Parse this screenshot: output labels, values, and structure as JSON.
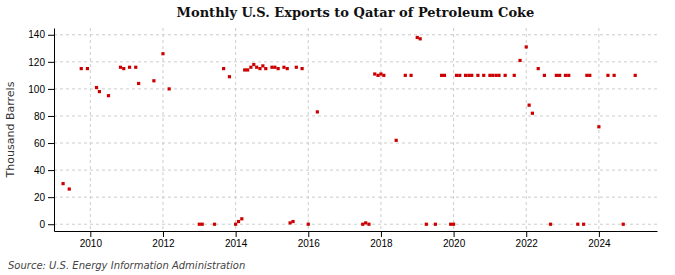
{
  "chart_data": {
    "type": "scatter",
    "title": "Monthly U.S. Exports to Qatar of Petroleum Coke",
    "ylabel": "Thousand Barrels",
    "annotations": [
      "Source: U.S. Energy Information Administration"
    ],
    "color": "#cc0000",
    "marker": "square",
    "grid": true,
    "xlim": [
      2009.0,
      2025.6
    ],
    "ylim": [
      -5,
      145
    ],
    "xticks": [
      2010,
      2012,
      2014,
      2016,
      2018,
      2020,
      2022,
      2024
    ],
    "yticks": [
      0,
      20,
      40,
      60,
      80,
      100,
      120,
      140
    ],
    "x": [
      2009.25,
      2009.42,
      2009.75,
      2009.92,
      2010.17,
      2010.25,
      2010.5,
      2010.83,
      2010.92,
      2011.08,
      2011.25,
      2011.33,
      2011.75,
      2012.0,
      2012.17,
      2013.0,
      2013.08,
      2013.42,
      2013.67,
      2013.83,
      2014.0,
      2014.08,
      2014.17,
      2014.25,
      2014.33,
      2014.42,
      2014.5,
      2014.58,
      2014.67,
      2014.75,
      2014.83,
      2015.0,
      2015.08,
      2015.17,
      2015.33,
      2015.42,
      2015.5,
      2015.58,
      2015.67,
      2015.83,
      2016.0,
      2016.25,
      2017.5,
      2017.58,
      2017.67,
      2017.83,
      2017.92,
      2018.0,
      2018.08,
      2018.42,
      2018.67,
      2018.83,
      2019.0,
      2019.08,
      2019.25,
      2019.5,
      2019.67,
      2019.75,
      2019.92,
      2020.0,
      2020.08,
      2020.17,
      2020.33,
      2020.42,
      2020.5,
      2020.67,
      2020.83,
      2021.0,
      2021.08,
      2021.17,
      2021.25,
      2021.42,
      2021.67,
      2021.83,
      2022.0,
      2022.08,
      2022.17,
      2022.33,
      2022.5,
      2022.67,
      2022.83,
      2022.92,
      2023.08,
      2023.17,
      2023.42,
      2023.58,
      2023.67,
      2023.75,
      2024.0,
      2024.25,
      2024.42,
      2024.67,
      2025.0
    ],
    "values": [
      30,
      26,
      115,
      115,
      101,
      98,
      95,
      116,
      115,
      116,
      116,
      104,
      106,
      126,
      100,
      0,
      0,
      0,
      115,
      109,
      0,
      2,
      4,
      114,
      114,
      116,
      118,
      116,
      115,
      117,
      115,
      116,
      116,
      115,
      116,
      115,
      1,
      2,
      116,
      115,
      0,
      83,
      0,
      1,
      0,
      111,
      110,
      111,
      110,
      62,
      110,
      110,
      138,
      137,
      0,
      0,
      110,
      110,
      0,
      0,
      110,
      110,
      110,
      110,
      110,
      110,
      110,
      110,
      110,
      110,
      110,
      110,
      110,
      121,
      131,
      88,
      82,
      115,
      110,
      0,
      110,
      110,
      110,
      110,
      0,
      0,
      110,
      110,
      72,
      110,
      110,
      0,
      110
    ]
  }
}
